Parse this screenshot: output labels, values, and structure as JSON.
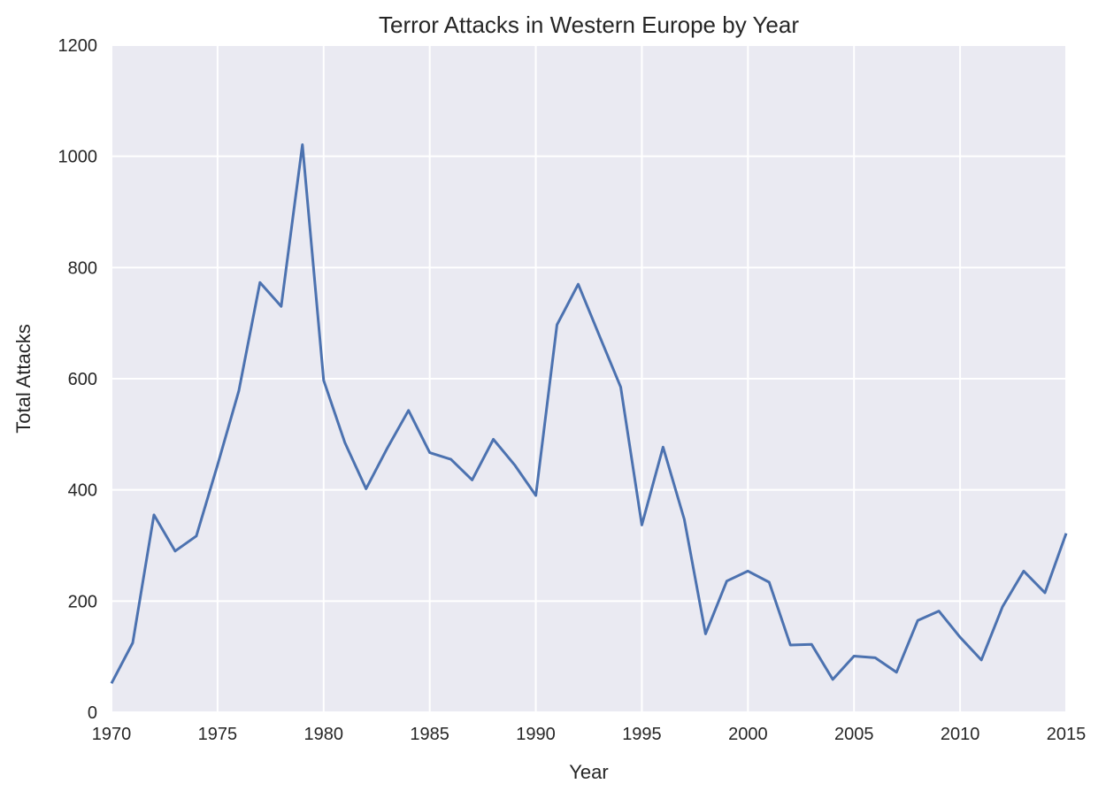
{
  "chart_data": {
    "type": "line",
    "title": "Terror Attacks in Western Europe by Year",
    "xlabel": "Year",
    "ylabel": "Total Attacks",
    "xlim": [
      1970,
      2015
    ],
    "ylim": [
      0,
      1200
    ],
    "xticks": [
      1970,
      1975,
      1980,
      1985,
      1990,
      1995,
      2000,
      2005,
      2010,
      2015
    ],
    "yticks": [
      0,
      200,
      400,
      600,
      800,
      1000,
      1200
    ],
    "grid": true,
    "colors": {
      "background": "#eaeaf2",
      "grid": "#ffffff",
      "line": "#4c72b0"
    },
    "series": [
      {
        "x": [
          1970,
          1971,
          1972,
          1973,
          1974,
          1975,
          1976,
          1977,
          1978,
          1979,
          1980,
          1981,
          1982,
          1983,
          1984,
          1985,
          1986,
          1987,
          1988,
          1989,
          1990,
          1991,
          1992,
          1993,
          1994,
          1995,
          1996,
          1997,
          1998,
          1999,
          2000,
          2001,
          2002,
          2003,
          2004,
          2005,
          2006,
          2007,
          2008,
          2009,
          2010,
          2011,
          2012,
          2013,
          2014,
          2015
        ],
        "values": [
          52,
          125,
          355,
          290,
          317,
          445,
          578,
          773,
          730,
          1021,
          597,
          485,
          402,
          475,
          543,
          467,
          455,
          418,
          491,
          445,
          390,
          697,
          770,
          677,
          585,
          337,
          477,
          347,
          141,
          236,
          254,
          234,
          121,
          122,
          59,
          101,
          98,
          72,
          165,
          182,
          135,
          94,
          190,
          254,
          215,
          322
        ]
      }
    ]
  }
}
